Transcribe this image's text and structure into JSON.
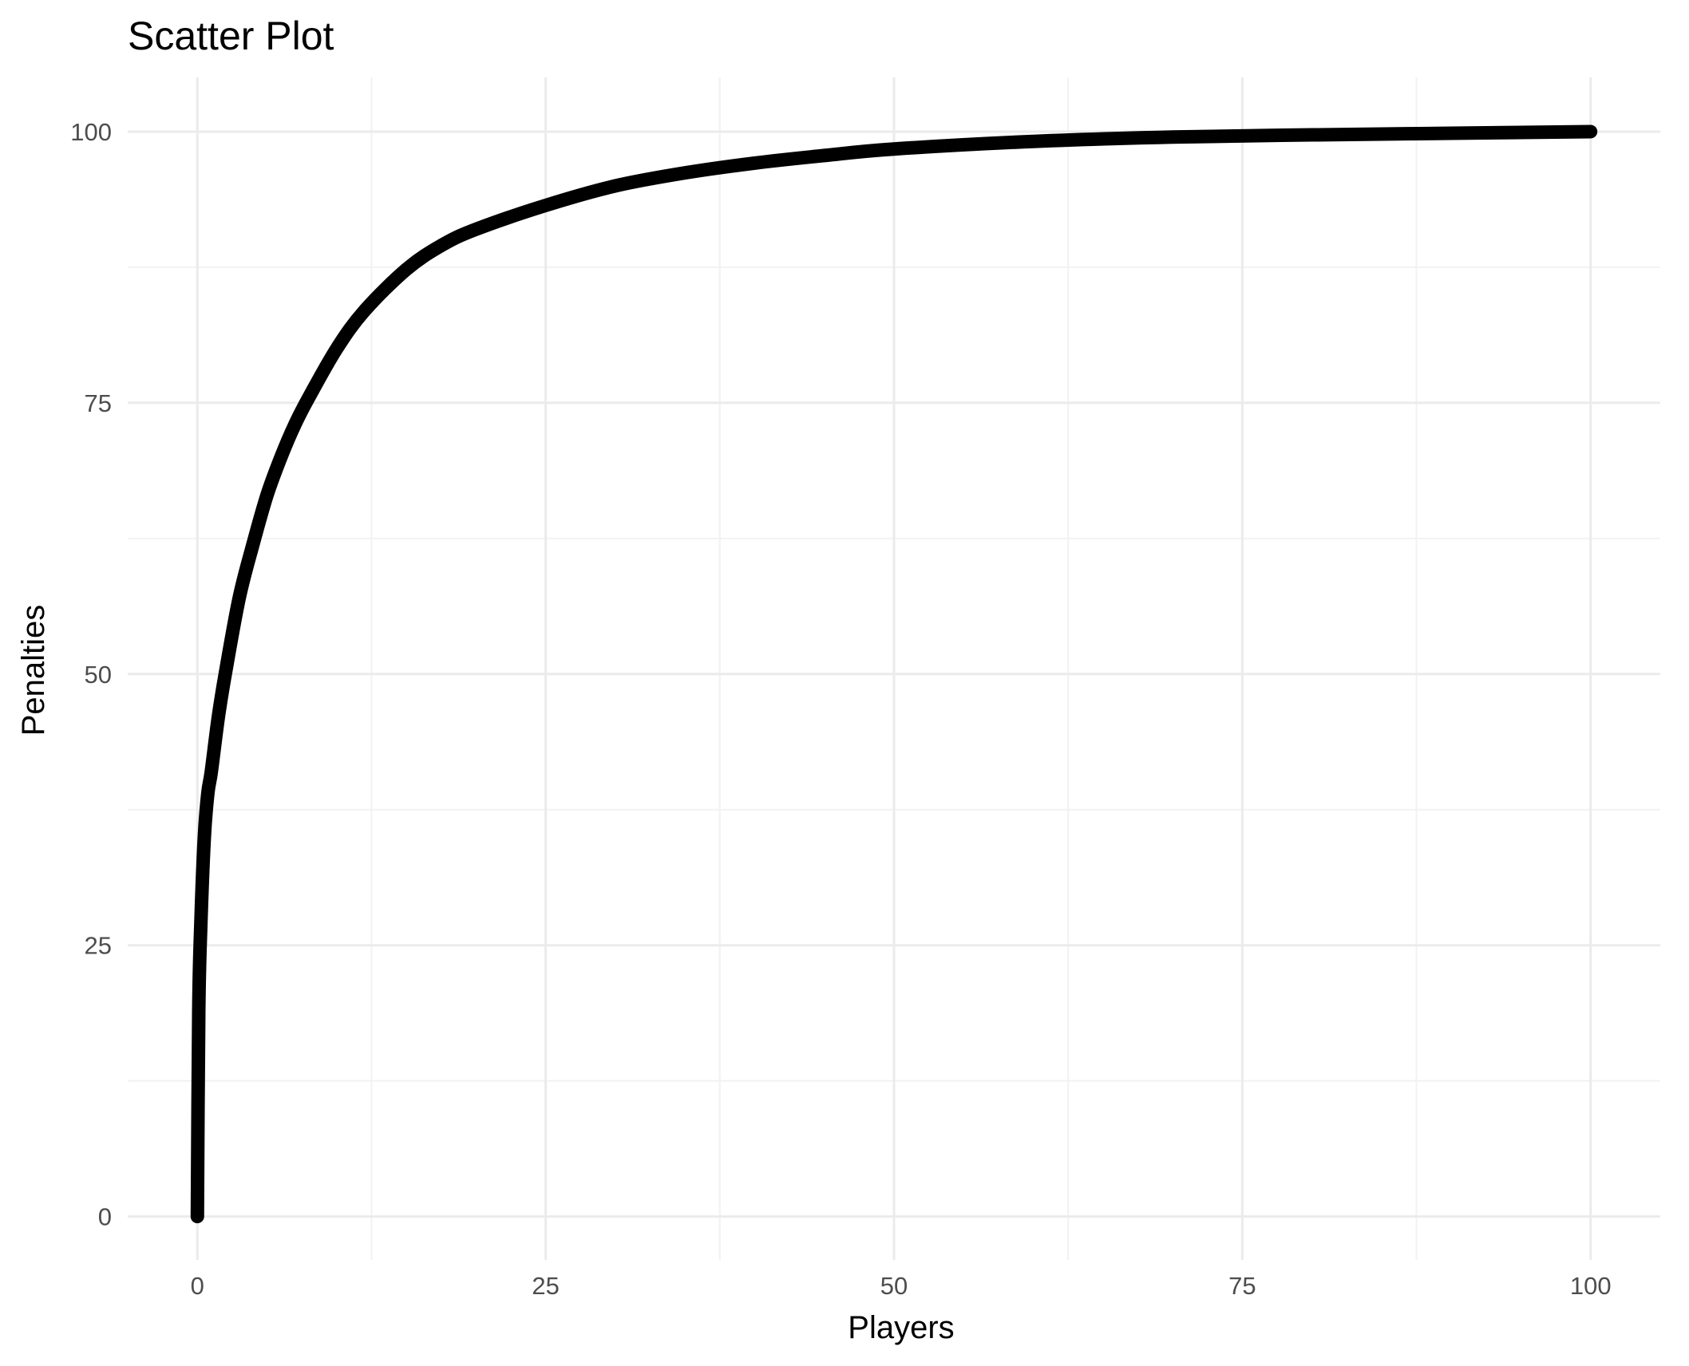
{
  "chart_data": {
    "type": "line",
    "title": "Scatter Plot",
    "xlabel": "Players",
    "ylabel": "Penalties",
    "xlim": [
      -5,
      105
    ],
    "ylim": [
      -4,
      105
    ],
    "x_ticks": [
      0,
      25,
      50,
      75,
      100
    ],
    "y_ticks": [
      0,
      25,
      50,
      75,
      100
    ],
    "x_tick_labels": [
      "0",
      "25",
      "50",
      "75",
      "100"
    ],
    "y_tick_labels": [
      "0",
      "25",
      "50",
      "75",
      "100"
    ],
    "x_minor": [
      12.5,
      37.5,
      62.5,
      87.5
    ],
    "y_minor": [
      12.5,
      37.5,
      62.5,
      87.5
    ],
    "grid": true,
    "legend": "none",
    "colors": {
      "line": "#000000",
      "grid": "#ebebeb",
      "grid_minor": "#f2f2f2",
      "tick_label": "#4d4d4d",
      "background": "#ffffff"
    },
    "series": [
      {
        "x": [
          0,
          0.1,
          0.25,
          0.5,
          0.75,
          1,
          1.5,
          2,
          3,
          4,
          5,
          6,
          7,
          8,
          10,
          12,
          15,
          17.5,
          20,
          25,
          30,
          35,
          40,
          45,
          50,
          60,
          70,
          80,
          90,
          100
        ],
        "y": [
          0,
          19,
          27,
          35,
          39,
          41,
          46,
          50,
          57,
          62,
          66.5,
          70,
          73,
          75.5,
          80,
          83.5,
          87.3,
          89.5,
          91,
          93.2,
          95,
          96.2,
          97.1,
          97.8,
          98.4,
          99.1,
          99.5,
          99.7,
          99.85,
          100
        ]
      }
    ]
  }
}
